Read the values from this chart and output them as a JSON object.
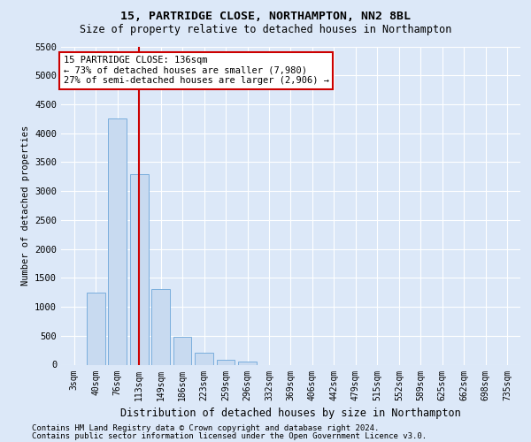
{
  "title_line1": "15, PARTRIDGE CLOSE, NORTHAMPTON, NN2 8BL",
  "title_line2": "Size of property relative to detached houses in Northampton",
  "xlabel": "Distribution of detached houses by size in Northampton",
  "ylabel": "Number of detached properties",
  "footer_line1": "Contains HM Land Registry data © Crown copyright and database right 2024.",
  "footer_line2": "Contains public sector information licensed under the Open Government Licence v3.0.",
  "bar_labels": [
    "3sqm",
    "40sqm",
    "76sqm",
    "113sqm",
    "149sqm",
    "186sqm",
    "223sqm",
    "259sqm",
    "296sqm",
    "332sqm",
    "369sqm",
    "406sqm",
    "442sqm",
    "479sqm",
    "515sqm",
    "552sqm",
    "589sqm",
    "625sqm",
    "662sqm",
    "698sqm",
    "735sqm"
  ],
  "bar_values": [
    0,
    1250,
    4250,
    3300,
    1300,
    480,
    200,
    90,
    60,
    0,
    0,
    0,
    0,
    0,
    0,
    0,
    0,
    0,
    0,
    0,
    0
  ],
  "bar_color": "#c8daf0",
  "bar_edge_color": "#7aaedd",
  "ylim": [
    0,
    5500
  ],
  "yticks": [
    0,
    500,
    1000,
    1500,
    2000,
    2500,
    3000,
    3500,
    4000,
    4500,
    5000,
    5500
  ],
  "property_line_x": 3.0,
  "property_line_color": "#cc0000",
  "annotation_text_line1": "15 PARTRIDGE CLOSE: 136sqm",
  "annotation_text_line2": "← 73% of detached houses are smaller (7,980)",
  "annotation_text_line3": "27% of semi-detached houses are larger (2,906) →",
  "annotation_box_color": "#ffffff",
  "annotation_box_edge": "#cc0000",
  "bg_color": "#dce8f8",
  "plot_bg": "#dce8f8",
  "grid_color": "#ffffff",
  "title_fontsize": 9.5,
  "subtitle_fontsize": 8.5,
  "xlabel_fontsize": 8.5,
  "ylabel_fontsize": 7.5,
  "tick_fontsize": 7,
  "ytick_fontsize": 7.5,
  "footer_fontsize": 6.5,
  "annot_fontsize": 7.5
}
